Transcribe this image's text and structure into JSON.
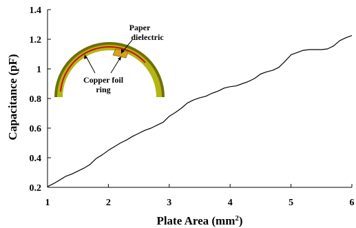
{
  "chart_data": {
    "type": "line",
    "title": "",
    "xlabel": "Plate Area (mm",
    "xlabel_sup": "2",
    "xlabel_close": ")",
    "ylabel": "Capacitance (pF)",
    "xlim": [
      1,
      6
    ],
    "ylim": [
      0.2,
      1.4
    ],
    "xticks": [
      1,
      2,
      3,
      4,
      5,
      6
    ],
    "yticks": [
      0.2,
      0.4,
      0.6,
      0.8,
      1,
      1.2,
      1.4
    ],
    "ytick_labels": [
      "0.2",
      "0.4",
      "0.6",
      "0.8",
      "1",
      "1.2",
      "1.4"
    ],
    "grid": false,
    "series": [
      {
        "color": "#000000",
        "x": [
          1.0,
          1.1,
          1.2,
          1.3,
          1.4,
          1.5,
          1.6,
          1.7,
          1.8,
          1.9,
          2.0,
          2.1,
          2.2,
          2.3,
          2.4,
          2.5,
          2.6,
          2.7,
          2.8,
          2.9,
          3.0,
          3.1,
          3.2,
          3.3,
          3.4,
          3.5,
          3.6,
          3.7,
          3.8,
          3.9,
          4.0,
          4.1,
          4.2,
          4.3,
          4.4,
          4.5,
          4.6,
          4.7,
          4.8,
          4.9,
          5.0,
          5.1,
          5.2,
          5.3,
          5.4,
          5.5,
          5.6,
          5.7,
          5.8,
          5.9,
          6.0
        ],
        "y": [
          0.205,
          0.225,
          0.25,
          0.275,
          0.29,
          0.31,
          0.33,
          0.355,
          0.395,
          0.42,
          0.45,
          0.475,
          0.5,
          0.52,
          0.545,
          0.565,
          0.585,
          0.6,
          0.62,
          0.64,
          0.68,
          0.705,
          0.735,
          0.77,
          0.79,
          0.805,
          0.815,
          0.835,
          0.85,
          0.87,
          0.88,
          0.885,
          0.9,
          0.915,
          0.935,
          0.965,
          0.98,
          0.99,
          1.01,
          1.05,
          1.095,
          1.11,
          1.125,
          1.13,
          1.13,
          1.13,
          1.135,
          1.155,
          1.19,
          1.21,
          1.225
        ]
      }
    ]
  },
  "inset": {
    "label_paper_line1": "Paper",
    "label_paper_line2": "dielectric",
    "label_ring_line1": "Copper foil",
    "label_ring_line2": "ring",
    "ring_color": "#b5b510",
    "ring_dark_color": "#6f6f0a",
    "copper_color": "#d8a020",
    "foil_line_color": "#cc1010"
  }
}
